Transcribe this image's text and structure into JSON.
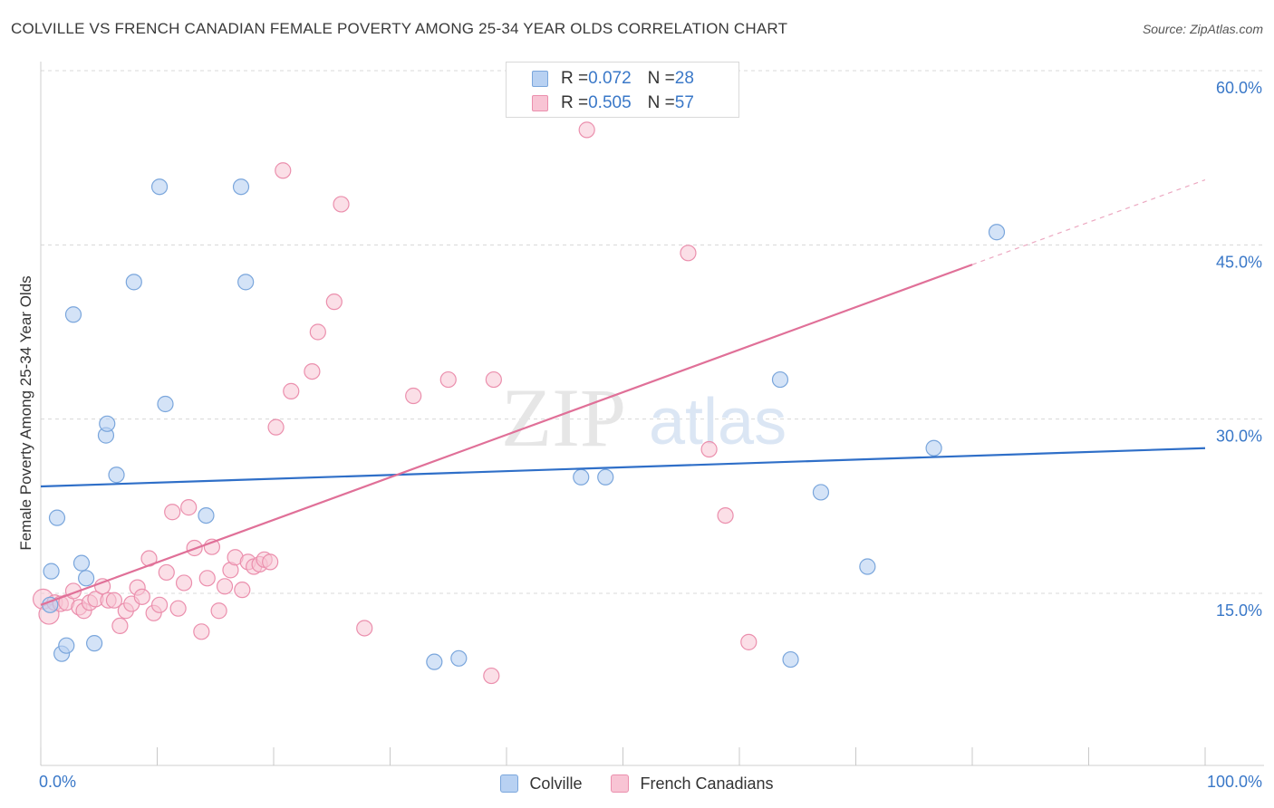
{
  "title": "COLVILLE VS FRENCH CANADIAN FEMALE POVERTY AMONG 25-34 YEAR OLDS CORRELATION CHART",
  "source": "Source: ZipAtlas.com",
  "watermark": {
    "zip": "ZIP",
    "atlas": "atlas"
  },
  "legend_top": [
    {
      "r_label": "R = ",
      "r_value": "0.072",
      "n_label": "N = ",
      "n_value": "28"
    },
    {
      "r_label": "R = ",
      "r_value": "0.505",
      "n_label": "N = ",
      "n_value": "57"
    }
  ],
  "colors": {
    "colville_fill": "#b8d1f2",
    "colville_stroke": "#7aa6dc",
    "colville_line": "#2f6fc8",
    "french_fill": "#f8c4d4",
    "french_stroke": "#eb8fad",
    "french_line": "#e07098",
    "grid": "#d8d8d8",
    "axis_text": "#3a78c8"
  },
  "chart_data": {
    "type": "scatter",
    "title": "COLVILLE VS FRENCH CANADIAN FEMALE POVERTY AMONG 25-34 YEAR OLDS CORRELATION CHART",
    "xlabel": "",
    "ylabel": "Female Poverty Among 25-34 Year Olds",
    "xlim": [
      0,
      100
    ],
    "ylim": [
      0,
      62
    ],
    "x_tick_labels": [
      "0.0%",
      "100.0%"
    ],
    "y_ticks": [
      15,
      30,
      45,
      60
    ],
    "y_tick_labels": [
      "15.0%",
      "30.0%",
      "45.0%",
      "60.0%"
    ],
    "grid": true,
    "legend_position": "top-center",
    "series": [
      {
        "name": "Colville",
        "points": [
          [
            0.8,
            14.0
          ],
          [
            0.9,
            16.9
          ],
          [
            1.4,
            21.5
          ],
          [
            1.8,
            9.8
          ],
          [
            2.2,
            10.5
          ],
          [
            2.8,
            39.0
          ],
          [
            3.5,
            17.6
          ],
          [
            3.9,
            16.3
          ],
          [
            4.6,
            10.7
          ],
          [
            5.6,
            28.6
          ],
          [
            5.7,
            29.6
          ],
          [
            6.5,
            25.2
          ],
          [
            8.0,
            41.8
          ],
          [
            10.2,
            50.0
          ],
          [
            10.7,
            31.3
          ],
          [
            14.2,
            21.7
          ],
          [
            17.2,
            50.0
          ],
          [
            17.6,
            41.8
          ],
          [
            33.8,
            9.1
          ],
          [
            35.9,
            9.4
          ],
          [
            46.4,
            25.0
          ],
          [
            48.5,
            25.0
          ],
          [
            63.5,
            33.4
          ],
          [
            64.4,
            9.3
          ],
          [
            67.0,
            23.7
          ],
          [
            71.0,
            17.3
          ],
          [
            76.7,
            27.5
          ],
          [
            82.1,
            46.1
          ]
        ],
        "trend": {
          "x": [
            0,
            100
          ],
          "y": [
            24.2,
            27.5
          ]
        }
      },
      {
        "name": "French Canadians",
        "points": [
          [
            0.2,
            14.5
          ],
          [
            0.7,
            13.2
          ],
          [
            1.2,
            14.2
          ],
          [
            1.7,
            14.1
          ],
          [
            2.2,
            14.2
          ],
          [
            2.8,
            15.2
          ],
          [
            3.3,
            13.8
          ],
          [
            3.7,
            13.5
          ],
          [
            4.2,
            14.2
          ],
          [
            4.7,
            14.5
          ],
          [
            5.3,
            15.6
          ],
          [
            5.8,
            14.4
          ],
          [
            6.3,
            14.4
          ],
          [
            6.8,
            12.2
          ],
          [
            7.3,
            13.5
          ],
          [
            7.8,
            14.1
          ],
          [
            8.3,
            15.5
          ],
          [
            8.7,
            14.7
          ],
          [
            9.3,
            18.0
          ],
          [
            9.7,
            13.3
          ],
          [
            10.2,
            14.0
          ],
          [
            10.8,
            16.8
          ],
          [
            11.3,
            22.0
          ],
          [
            11.8,
            13.7
          ],
          [
            12.3,
            15.9
          ],
          [
            12.7,
            22.4
          ],
          [
            13.2,
            18.9
          ],
          [
            13.8,
            11.7
          ],
          [
            14.3,
            16.3
          ],
          [
            14.7,
            19.0
          ],
          [
            15.3,
            13.5
          ],
          [
            15.8,
            15.6
          ],
          [
            16.3,
            17.0
          ],
          [
            16.7,
            18.1
          ],
          [
            17.3,
            15.3
          ],
          [
            17.8,
            17.7
          ],
          [
            18.3,
            17.3
          ],
          [
            18.8,
            17.5
          ],
          [
            19.2,
            17.9
          ],
          [
            19.7,
            17.7
          ],
          [
            20.2,
            29.3
          ],
          [
            20.8,
            51.4
          ],
          [
            21.5,
            32.4
          ],
          [
            23.3,
            34.1
          ],
          [
            23.8,
            37.5
          ],
          [
            25.2,
            40.1
          ],
          [
            25.8,
            48.5
          ],
          [
            27.8,
            12.0
          ],
          [
            32.0,
            32.0
          ],
          [
            35.0,
            33.4
          ],
          [
            38.7,
            7.9
          ],
          [
            38.9,
            33.4
          ],
          [
            46.9,
            54.9
          ],
          [
            55.6,
            44.3
          ],
          [
            57.4,
            27.4
          ],
          [
            58.8,
            21.7
          ],
          [
            60.8,
            10.8
          ]
        ],
        "trend": {
          "x": [
            0,
            80
          ],
          "y": [
            14.0,
            43.3
          ]
        },
        "trend_dashed": {
          "x": [
            80,
            100
          ],
          "y": [
            43.3,
            50.6
          ]
        }
      }
    ]
  },
  "legend_bottom": [
    "Colville",
    "French Canadians"
  ]
}
